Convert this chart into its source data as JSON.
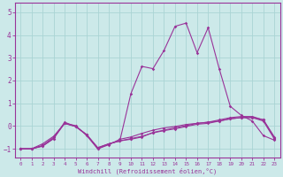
{
  "title": "",
  "xlabel": "Windchill (Refroidissement éolien,°C)",
  "ylabel": "",
  "background_color": "#cce9e9",
  "grid_color": "#aad4d4",
  "line_color": "#993399",
  "x_values": [
    0,
    1,
    2,
    3,
    4,
    5,
    6,
    7,
    8,
    9,
    10,
    11,
    12,
    13,
    14,
    15,
    16,
    17,
    18,
    19,
    20,
    21,
    22,
    23
  ],
  "series1": [
    -1,
    -1,
    -0.85,
    -0.5,
    0.12,
    -0.02,
    -0.38,
    -0.95,
    -0.78,
    -0.65,
    -0.55,
    -0.45,
    -0.3,
    -0.2,
    -0.12,
    -0.02,
    0.08,
    0.12,
    0.22,
    0.32,
    0.37,
    0.38,
    0.28,
    -0.52
  ],
  "series2": [
    -1,
    -1,
    -0.78,
    -0.45,
    0.12,
    0.02,
    -0.42,
    -1.0,
    -0.82,
    -0.58,
    -0.48,
    -0.32,
    -0.18,
    -0.08,
    -0.02,
    0.07,
    0.12,
    0.17,
    0.22,
    0.32,
    0.37,
    0.37,
    0.22,
    -0.57
  ],
  "series3": [
    -1,
    -1,
    -0.88,
    -0.55,
    0.17,
    -0.02,
    -0.38,
    -1.0,
    -0.78,
    -0.65,
    1.42,
    2.62,
    2.52,
    3.32,
    4.38,
    4.52,
    3.22,
    4.32,
    2.52,
    0.87,
    0.47,
    0.22,
    -0.42,
    -0.62
  ],
  "series4": [
    -1,
    -1,
    -0.88,
    -0.55,
    0.12,
    -0.02,
    -0.38,
    -0.95,
    -0.78,
    -0.65,
    -0.58,
    -0.48,
    -0.28,
    -0.18,
    -0.08,
    0.02,
    0.12,
    0.17,
    0.27,
    0.37,
    0.42,
    0.42,
    0.27,
    -0.48
  ],
  "ylim": [
    -1.4,
    5.4
  ],
  "xlim": [
    -0.5,
    23.5
  ],
  "yticks": [
    -1,
    0,
    1,
    2,
    3,
    4,
    5
  ],
  "xticks": [
    0,
    1,
    2,
    3,
    4,
    5,
    6,
    7,
    8,
    9,
    10,
    11,
    12,
    13,
    14,
    15,
    16,
    17,
    18,
    19,
    20,
    21,
    22,
    23
  ],
  "xtick_labels": [
    "0",
    "1",
    "2",
    "3",
    "4",
    "5",
    "6",
    "7",
    "8",
    "9",
    "10",
    "11",
    "12",
    "13",
    "14",
    "15",
    "16",
    "17",
    "18",
    "19",
    "20",
    "21",
    "22",
    "23"
  ],
  "marker": "D",
  "linewidth": 0.8,
  "markersize": 1.8,
  "xlabel_fontsize": 5.0,
  "xtick_fontsize": 4.2,
  "ytick_fontsize": 5.5
}
